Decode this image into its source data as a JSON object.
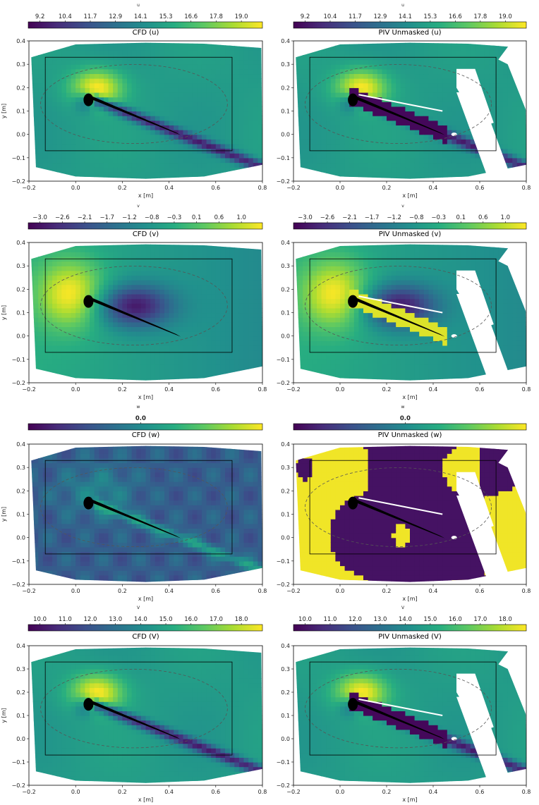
{
  "chart_data": [
    {
      "type": "heatmap",
      "title": "CFD (u)",
      "colorbar_label": "u",
      "colorbar_ticks": [
        "9.2",
        "10.4",
        "11.7",
        "12.9",
        "14.1",
        "15.3",
        "16.6",
        "17.8",
        "19.0"
      ],
      "xlabel": "x [m]",
      "ylabel": "y [m]",
      "xlim": [
        -0.2,
        0.8
      ],
      "ylim": [
        -0.2,
        0.4
      ],
      "xticks": [
        "−0.2",
        "0.0",
        "0.2",
        "0.4",
        "0.6",
        "0.8"
      ],
      "yticks": [
        "−0.2",
        "−0.1",
        "0.0",
        "0.1",
        "0.2",
        "0.3",
        "0.4"
      ],
      "field": "u",
      "source": "CFD"
    },
    {
      "type": "heatmap",
      "title": "PIV Unmasked (u)",
      "colorbar_label": "u",
      "colorbar_ticks": [
        "9.2",
        "10.4",
        "11.7",
        "12.9",
        "14.1",
        "15.3",
        "16.6",
        "17.8",
        "19.0"
      ],
      "xlabel": "x [m]",
      "ylabel": "",
      "xlim": [
        -0.2,
        0.8
      ],
      "ylim": [
        -0.2,
        0.4
      ],
      "xticks": [
        "−0.2",
        "0.0",
        "0.2",
        "0.4",
        "0.6",
        "0.8"
      ],
      "yticks": [
        "−0.2",
        "−0.1",
        "0.0",
        "0.1",
        "0.2",
        "0.3",
        "0.4"
      ],
      "field": "u",
      "source": "PIV"
    },
    {
      "type": "heatmap",
      "title": "CFD (v)",
      "colorbar_label": "v",
      "colorbar_ticks": [
        "−3.0",
        "−2.6",
        "−2.1",
        "−1.7",
        "−1.2",
        "−0.8",
        "−0.3",
        "0.1",
        "0.6",
        "1.0"
      ],
      "xlabel": "x [m]",
      "ylabel": "y [m]",
      "xlim": [
        -0.2,
        0.8
      ],
      "ylim": [
        -0.2,
        0.4
      ],
      "xticks": [
        "−0.2",
        "0.0",
        "0.2",
        "0.4",
        "0.6",
        "0.8"
      ],
      "yticks": [
        "−0.2",
        "−0.1",
        "0.0",
        "0.1",
        "0.2",
        "0.3",
        "0.4"
      ],
      "field": "v",
      "source": "CFD"
    },
    {
      "type": "heatmap",
      "title": "PIV Unmasked (v)",
      "colorbar_label": "v",
      "colorbar_ticks": [
        "−3.0",
        "−2.6",
        "−2.1",
        "−1.7",
        "−1.2",
        "−0.8",
        "−0.3",
        "0.1",
        "0.6",
        "1.0"
      ],
      "xlabel": "x [m]",
      "ylabel": "",
      "xlim": [
        -0.2,
        0.8
      ],
      "ylim": [
        -0.2,
        0.4
      ],
      "xticks": [
        "−0.2",
        "0.0",
        "0.2",
        "0.4",
        "0.6",
        "0.8"
      ],
      "yticks": [
        "−0.2",
        "−0.1",
        "0.0",
        "0.1",
        "0.2",
        "0.3",
        "0.4"
      ],
      "field": "v",
      "source": "PIV"
    },
    {
      "type": "heatmap",
      "title": "CFD (w)",
      "colorbar_label": "w",
      "colorbar_ticks": [
        "0.0"
      ],
      "xlabel": "x [m]",
      "ylabel": "y [m]",
      "xlim": [
        -0.2,
        0.8
      ],
      "ylim": [
        -0.2,
        0.4
      ],
      "xticks": [
        "−0.2",
        "0.0",
        "0.2",
        "0.4",
        "0.6",
        "0.8"
      ],
      "yticks": [
        "−0.2",
        "−0.1",
        "0.0",
        "0.1",
        "0.2",
        "0.3",
        "0.4"
      ],
      "field": "w",
      "source": "CFD"
    },
    {
      "type": "heatmap",
      "title": "PIV Unmasked (w)",
      "colorbar_label": "w",
      "colorbar_ticks": [
        "0.0"
      ],
      "xlabel": "x [m]",
      "ylabel": "",
      "xlim": [
        -0.2,
        0.8
      ],
      "ylim": [
        -0.2,
        0.4
      ],
      "xticks": [
        "−0.2",
        "0.0",
        "0.2",
        "0.4",
        "0.6",
        "0.8"
      ],
      "yticks": [
        "−0.2",
        "−0.1",
        "0.0",
        "0.1",
        "0.2",
        "0.3",
        "0.4"
      ],
      "field": "w",
      "source": "PIV"
    },
    {
      "type": "heatmap",
      "title": "CFD (V)",
      "colorbar_label": "V",
      "colorbar_ticks": [
        "10.0",
        "11.0",
        "12.0",
        "13.0",
        "14.0",
        "15.0",
        "16.0",
        "17.0",
        "18.0"
      ],
      "xlabel": "x [m]",
      "ylabel": "y [m]",
      "xlim": [
        -0.2,
        0.8
      ],
      "ylim": [
        -0.2,
        0.4
      ],
      "xticks": [
        "−0.2",
        "0.0",
        "0.2",
        "0.4",
        "0.6",
        "0.8"
      ],
      "yticks": [
        "−0.2",
        "−0.1",
        "0.0",
        "0.1",
        "0.2",
        "0.3",
        "0.4"
      ],
      "field": "V",
      "source": "CFD"
    },
    {
      "type": "heatmap",
      "title": "PIV Unmasked (V)",
      "colorbar_label": "V",
      "colorbar_ticks": [
        "10.0",
        "11.0",
        "12.0",
        "13.0",
        "14.0",
        "15.0",
        "16.0",
        "17.0",
        "18.0"
      ],
      "xlabel": "x [m]",
      "ylabel": "",
      "xlim": [
        -0.2,
        0.8
      ],
      "ylim": [
        -0.2,
        0.4
      ],
      "xticks": [
        "−0.2",
        "0.0",
        "0.2",
        "0.4",
        "0.6",
        "0.8"
      ],
      "yticks": [
        "−0.2",
        "−0.1",
        "0.0",
        "0.1",
        "0.2",
        "0.3",
        "0.4"
      ],
      "field": "V",
      "source": "PIV"
    }
  ],
  "colors": {
    "colormap": [
      "#440154",
      "#472c7a",
      "#3b518b",
      "#2c718e",
      "#21908d",
      "#27ad81",
      "#5cc863",
      "#aadc32",
      "#fde725"
    ],
    "airfoil": "#000000",
    "frame": "#000000",
    "dashed_ellipse": "#555555"
  }
}
